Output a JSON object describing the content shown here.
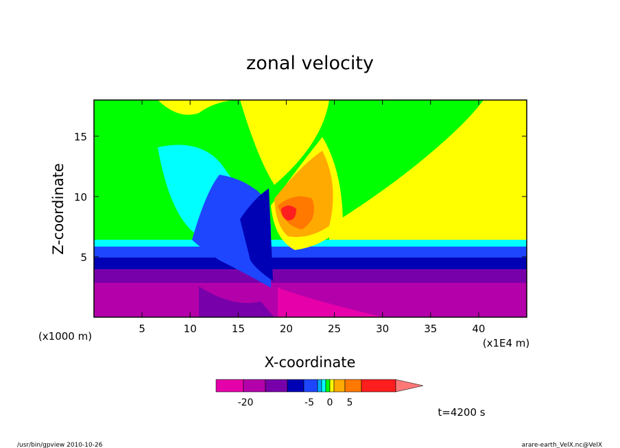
{
  "chart_data": {
    "type": "heatmap",
    "title": "zonal velocity",
    "xlabel": "X-coordinate",
    "ylabel": "Z-coordinate",
    "x_unit_left": "(x1000 m)",
    "x_unit_right": "(x1E4 m)",
    "xlim": [
      0,
      45
    ],
    "ylim": [
      0,
      18
    ],
    "x_ticks": [
      5,
      10,
      15,
      20,
      25,
      30,
      35,
      40
    ],
    "y_ticks": [
      5,
      10,
      15
    ],
    "grid": false,
    "colorbar": {
      "colors": [
        "#e600aa",
        "#b400aa",
        "#7800aa",
        "#0000b4",
        "#1e46ff",
        "#00aaff",
        "#00ffff",
        "#00ff00",
        "#ffff00",
        "#ffaa00",
        "#ff7800",
        "#ff1e1e",
        "#ff7878"
      ],
      "tick_labels": [
        "-20",
        "-5",
        "0",
        "5"
      ]
    },
    "time_label": "t=4200 s",
    "bands": [
      {
        "name": "lower",
        "color": "#b400aa"
      },
      {
        "name": "mid",
        "color": "#7800aa"
      },
      {
        "name": "upper-dark",
        "color": "#0000b4"
      },
      {
        "name": "upper-blue",
        "color": "#1e46ff"
      },
      {
        "name": "cyan",
        "color": "#00ffff"
      },
      {
        "name": "background",
        "color": "#00ff00"
      }
    ]
  },
  "footer": {
    "left": "/usr/bin/gpview   2010-10-26",
    "right": "arare-earth_VelX.nc@VelX"
  }
}
